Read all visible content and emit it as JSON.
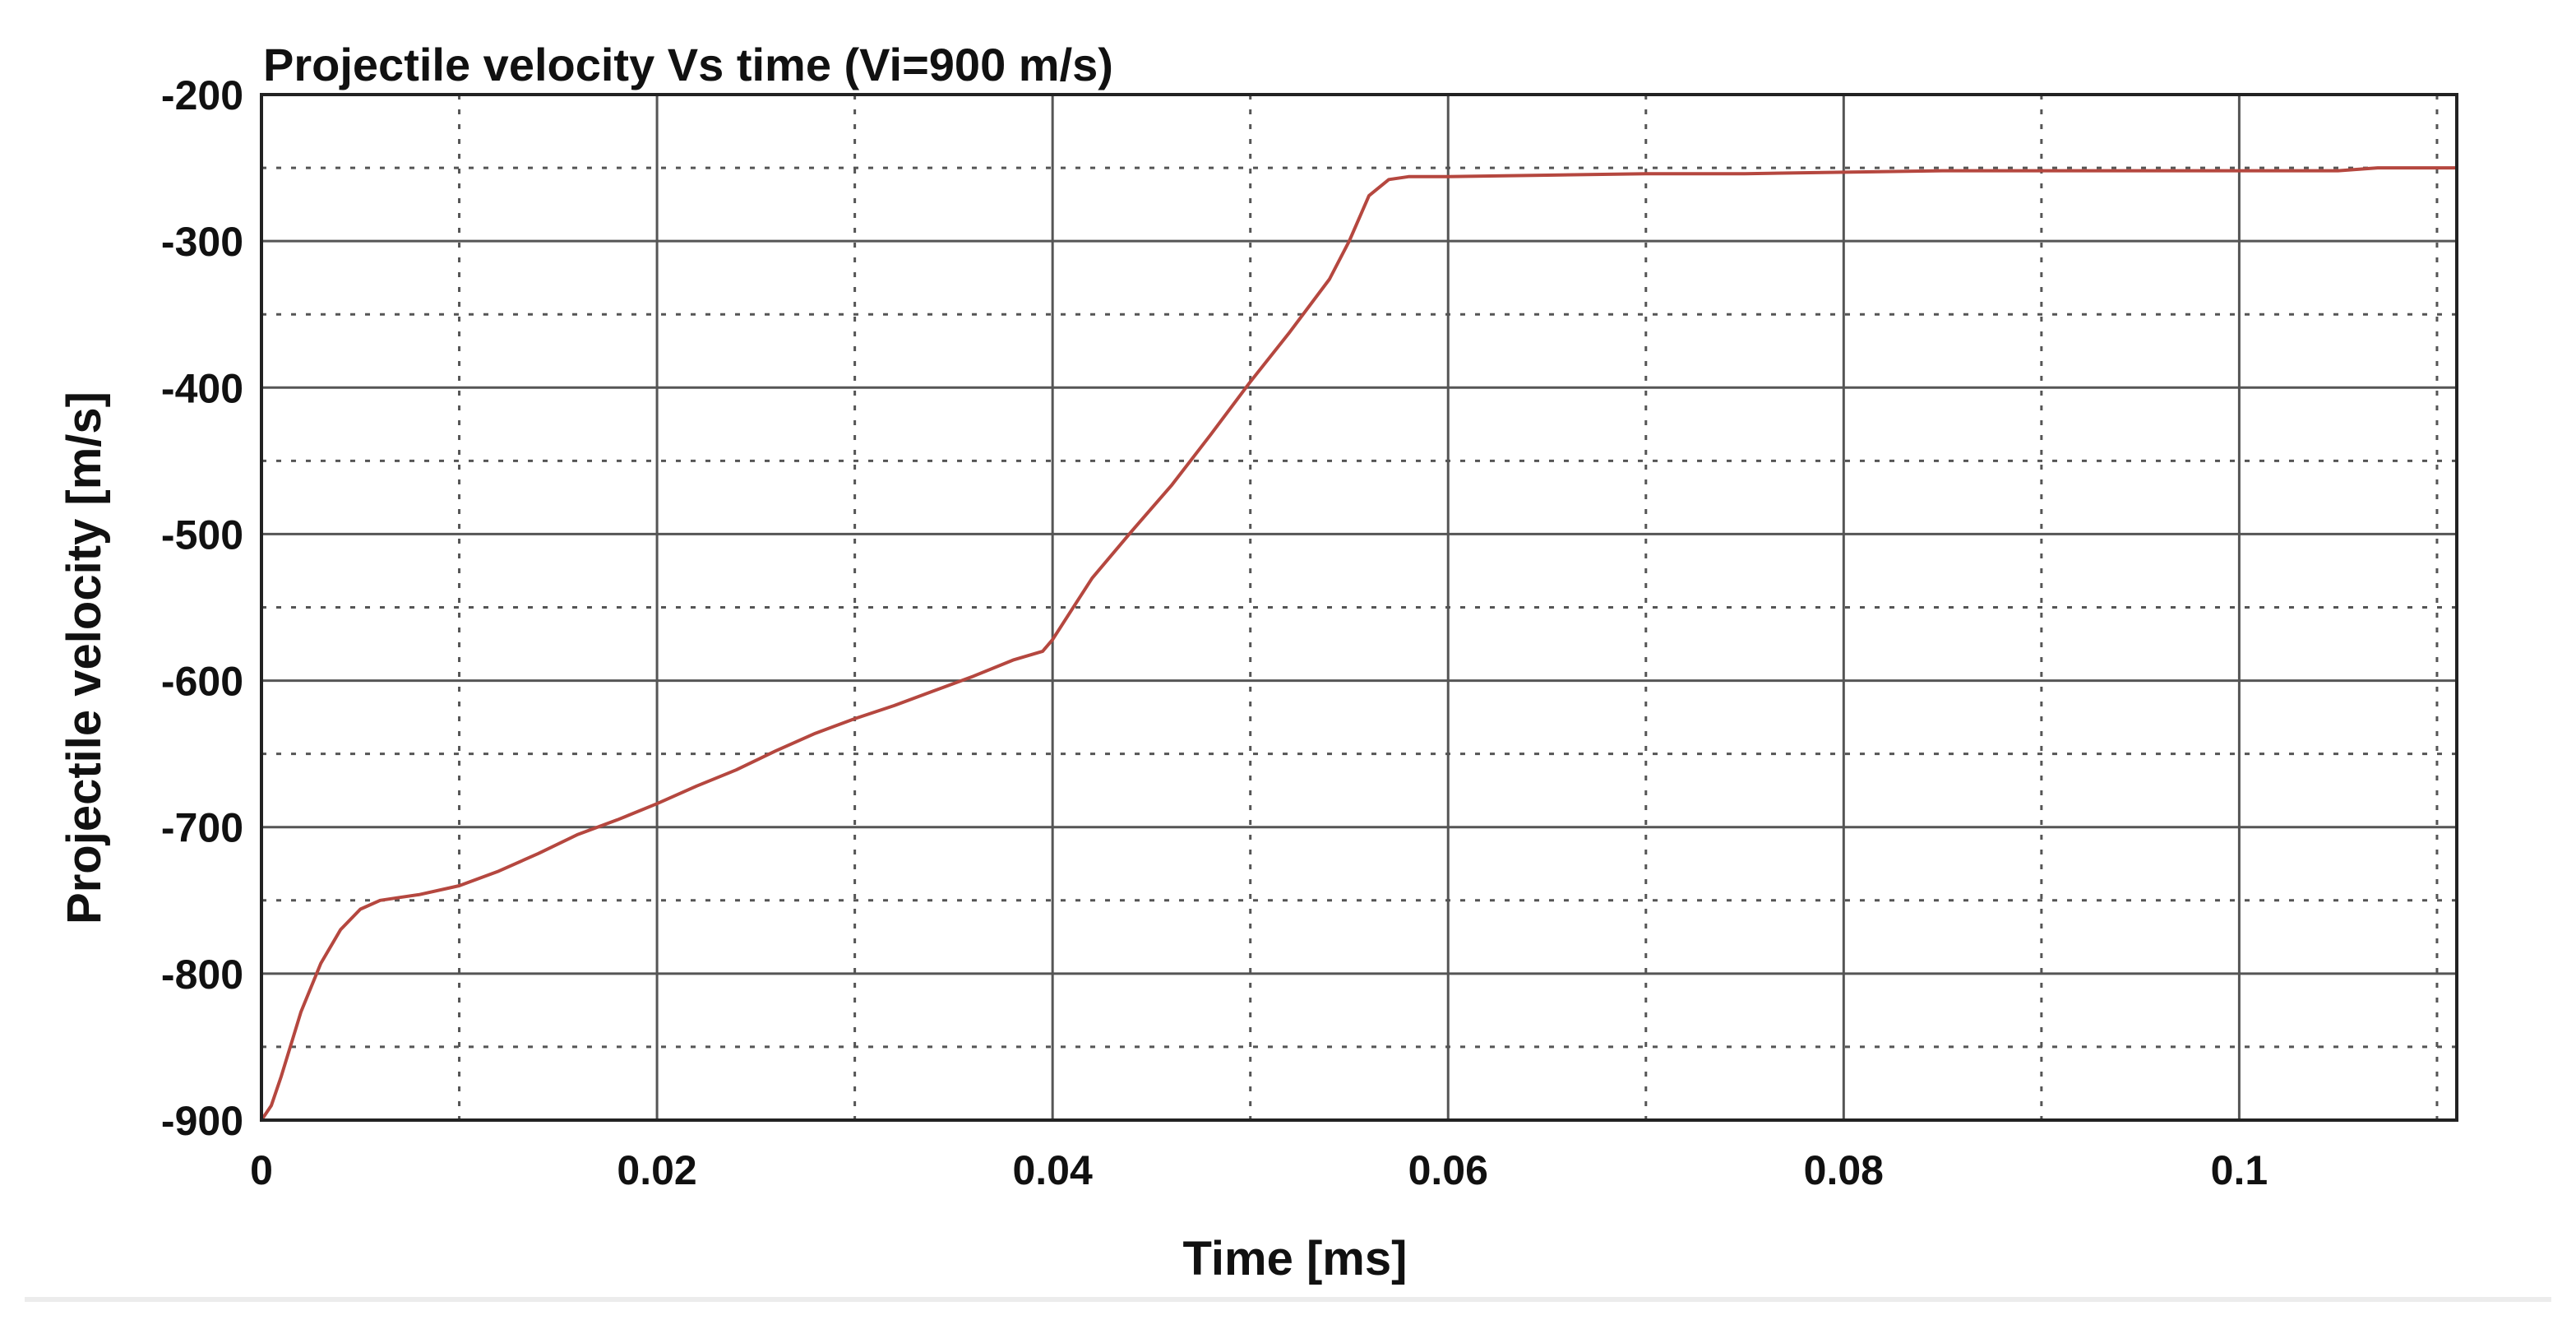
{
  "chart_data": {
    "type": "line",
    "title": "Projectile velocity Vs time (Vi=900 m/s)",
    "xlabel": "Time [ms]",
    "ylabel": "Projectile velocity [m/s]",
    "xlim": [
      0,
      0.111
    ],
    "ylim": [
      -900,
      -200
    ],
    "x_major_ticks": [
      0,
      0.02,
      0.04,
      0.06,
      0.08,
      0.1
    ],
    "x_tick_labels": [
      "0",
      "0.02",
      "0.04",
      "0.06",
      "0.08",
      "0.1"
    ],
    "x_minor_ticks": [
      0.01,
      0.03,
      0.05,
      0.07,
      0.09,
      0.11
    ],
    "y_major_ticks": [
      -200,
      -300,
      -400,
      -500,
      -600,
      -700,
      -800,
      -900
    ],
    "y_tick_labels": [
      "-200",
      "-300",
      "-400",
      "-500",
      "-600",
      "-700",
      "-800",
      "-900"
    ],
    "y_minor_ticks": [
      -250,
      -350,
      -450,
      -550,
      -650,
      -750,
      -850
    ],
    "grid": true,
    "legend": "none",
    "series": [
      {
        "color": "#b5473f",
        "x": [
          0,
          0.0005,
          0.001,
          0.0015,
          0.002,
          0.003,
          0.004,
          0.005,
          0.006,
          0.007,
          0.008,
          0.01,
          0.012,
          0.014,
          0.016,
          0.018,
          0.02,
          0.022,
          0.024,
          0.026,
          0.028,
          0.03,
          0.032,
          0.034,
          0.036,
          0.038,
          0.0395,
          0.04,
          0.041,
          0.042,
          0.044,
          0.046,
          0.048,
          0.05,
          0.052,
          0.054,
          0.055,
          0.056,
          0.057,
          0.058,
          0.06,
          0.065,
          0.07,
          0.075,
          0.08,
          0.085,
          0.09,
          0.095,
          0.1,
          0.105,
          0.107,
          0.111
        ],
        "y": [
          -900,
          -890,
          -870,
          -848,
          -826,
          -793,
          -770,
          -756,
          -750,
          -748,
          -746,
          -740,
          -730,
          -718,
          -705,
          -695,
          -684,
          -672,
          -661,
          -648,
          -636,
          -626,
          -617,
          -607,
          -597,
          -586,
          -580,
          -572,
          -551,
          -530,
          -498,
          -467,
          -432,
          -396,
          -362,
          -326,
          -300,
          -269,
          -258,
          -256,
          -256,
          -255,
          -254,
          -254,
          -253,
          -252,
          -252,
          -252,
          -252,
          -252,
          -250,
          -250
        ]
      }
    ]
  }
}
